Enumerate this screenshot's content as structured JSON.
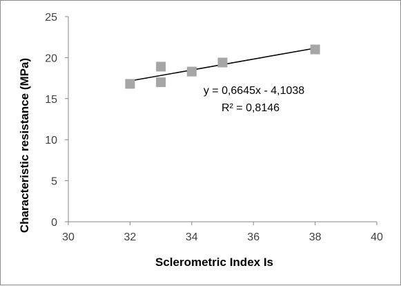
{
  "chart_data": {
    "type": "scatter",
    "title": "",
    "xlabel": "Sclerometric Index Is",
    "ylabel": "Characteristic resistance (MPa)",
    "xlim": [
      30,
      40
    ],
    "ylim": [
      0,
      25
    ],
    "x_ticks": [
      "30",
      "32",
      "34",
      "36",
      "38",
      "40"
    ],
    "y_ticks": [
      "0",
      "5",
      "10",
      "15",
      "20",
      "25"
    ],
    "grid": false,
    "legend": "none",
    "marker_color": "#a6a6a6",
    "trendline_color": "#000000",
    "series": [
      {
        "x": [
          32,
          33,
          33,
          34,
          35,
          38
        ],
        "y": [
          16.8,
          17.0,
          18.9,
          18.3,
          19.4,
          21.0
        ]
      }
    ],
    "trendline": {
      "slope": 0.6645,
      "intercept": -4.1038,
      "x_range": [
        32,
        38
      ],
      "equation_label": "y = 0,6645x - 4,1038",
      "r2_label": "R² = 0,8146"
    }
  }
}
